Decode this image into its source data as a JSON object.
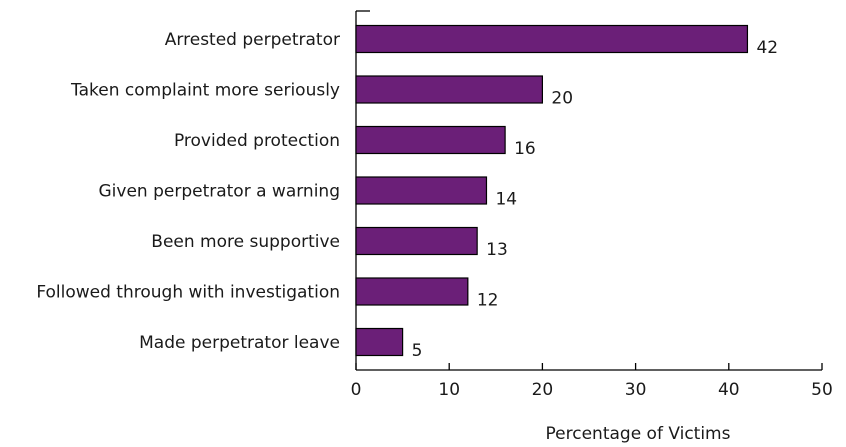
{
  "chart_data": {
    "type": "bar",
    "orientation": "horizontal",
    "categories": [
      "Arrested perpetrator",
      "Taken complaint more seriously",
      "Provided protection",
      "Given perpetrator a warning",
      "Been more supportive",
      "Followed through with investigation",
      "Made perpetrator leave"
    ],
    "values": [
      42,
      20,
      16,
      14,
      13,
      12,
      5
    ],
    "data_labels": [
      "42",
      "20",
      "16",
      "14",
      "13",
      "12",
      "5"
    ],
    "xlabel": "Percentage of Victims",
    "ylabel": "",
    "xlim": [
      0,
      50
    ],
    "xticks": [
      0,
      10,
      20,
      30,
      40,
      50
    ],
    "xtick_labels": [
      "0",
      "10",
      "20",
      "30",
      "40",
      "50"
    ],
    "bar_color": "#6b1f78",
    "grid": false
  }
}
